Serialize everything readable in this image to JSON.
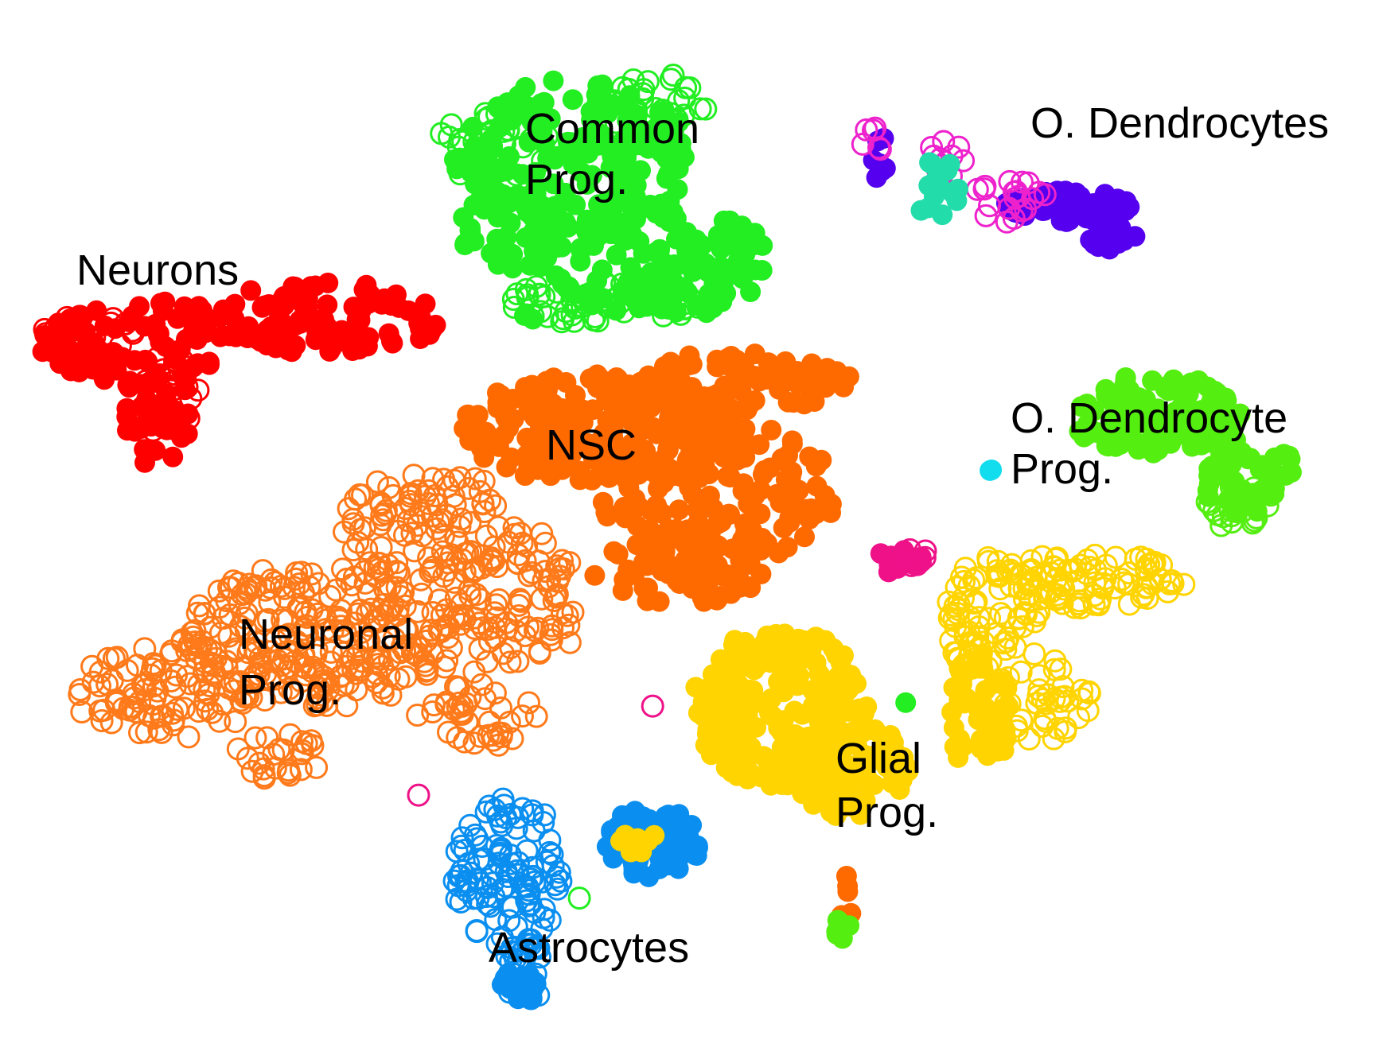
{
  "chart_data": {
    "type": "scatter",
    "title": "",
    "xlabel": "",
    "ylabel": "",
    "grid": false,
    "labels": [
      {
        "id": "neurons",
        "lines": [
          "Neurons"
        ]
      },
      {
        "id": "common-prog",
        "lines": [
          "Common",
          "Prog."
        ]
      },
      {
        "id": "o-dendrocytes",
        "lines": [
          "O. Dendrocytes"
        ]
      },
      {
        "id": "nsc",
        "lines": [
          "NSC"
        ]
      },
      {
        "id": "o-dendrocyte-prog",
        "lines": [
          "O. Dendrocyte",
          "Prog."
        ]
      },
      {
        "id": "neuronal-prog",
        "lines": [
          "Neuronal",
          "Prog."
        ]
      },
      {
        "id": "glial-prog",
        "lines": [
          "Glial",
          "Prog."
        ]
      },
      {
        "id": "astrocytes",
        "lines": [
          "Astrocytes"
        ]
      }
    ],
    "colors": {
      "neurons": "#ff0000",
      "common_prog": "#22ee22",
      "nsc": "#ff6a00",
      "neuronal_prog": "#ff7a1a",
      "glial_prog": "#ffd400",
      "o_dendrocyte_prog": "#55ee11",
      "o_dendrocytes": "#5500ee",
      "o_dendrocytes_pink": "#ee22cc",
      "astrocytes": "#0a8ff0",
      "teal": "#22ddaa",
      "magenta": "#ee1188",
      "cyan": "#11ddee"
    }
  }
}
